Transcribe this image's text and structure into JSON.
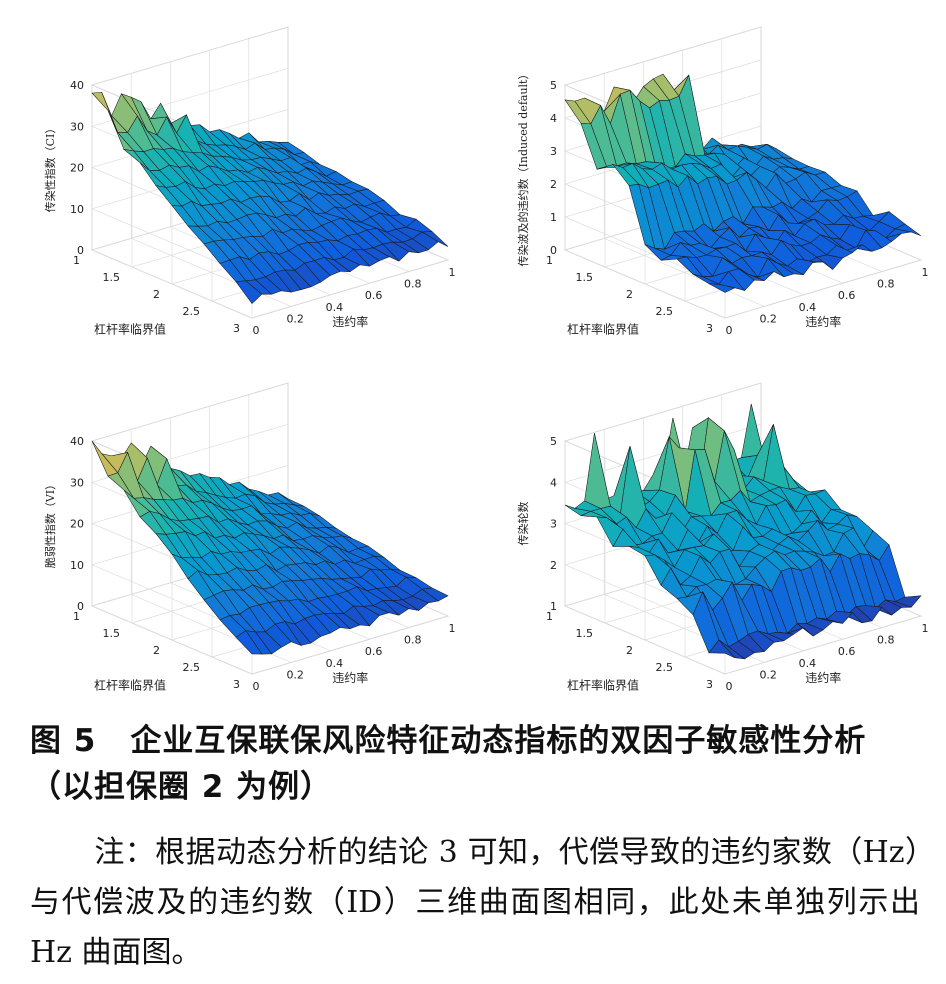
{
  "caption": {
    "number": "图 5",
    "text": "企业互保联保风险特征动态指标的双因子敏感性分析（以担保圈 2 为例）"
  },
  "note": "注：根据动态分析的结论 3 可知，代偿导致的违约家数（Hz）与代偿波及的违约数（ID）三维曲面图相同，此处未单独列示出 Hz 曲面图。",
  "colors": {
    "parula_low": "#352a87",
    "parula_mid": "#1fb0b0",
    "parula_high": "#f9fb0e"
  },
  "chart_data": [
    {
      "type": "surface3d",
      "xlabel": "违约率",
      "ylabel": "杠杆率临界值",
      "zlabel": "传染性指数（CI）",
      "x_ticks": [
        "0",
        "0.2",
        "0.4",
        "0.6",
        "0.8",
        "1"
      ],
      "y_ticks": [
        "1",
        "1.5",
        "2",
        "2.5",
        "3"
      ],
      "z_ticks": [
        "0",
        "10",
        "20",
        "30",
        "40"
      ],
      "zlim": [
        0,
        40
      ],
      "shape": "ramp"
    },
    {
      "type": "surface3d",
      "xlabel": "违约率",
      "ylabel": "杠杆率临界值",
      "zlabel": "传染波及的违约数（Induced default）",
      "x_ticks": [
        "0",
        "0.2",
        "0.4",
        "0.6",
        "0.8",
        "1"
      ],
      "y_ticks": [
        "1",
        "1.5",
        "2",
        "2.5",
        "3"
      ],
      "z_ticks": [
        "0",
        "1",
        "2",
        "3",
        "4",
        "5"
      ],
      "zlim": [
        0,
        5
      ],
      "shape": "cliff"
    },
    {
      "type": "surface3d",
      "xlabel": "违约率",
      "ylabel": "杠杆率临界值",
      "zlabel": "脆弱性指数（VI）",
      "x_ticks": [
        "0",
        "0.2",
        "0.4",
        "0.6",
        "0.8",
        "1"
      ],
      "y_ticks": [
        "1",
        "1.5",
        "2",
        "2.5",
        "3"
      ],
      "z_ticks": [
        "0",
        "10",
        "20",
        "30",
        "40"
      ],
      "zlim": [
        0,
        40
      ],
      "shape": "ramp2"
    },
    {
      "type": "surface3d",
      "xlabel": "违约率",
      "ylabel": "杠杆率临界值",
      "zlabel": "传染轮数",
      "x_ticks": [
        "0",
        "0.2",
        "0.4",
        "0.6",
        "0.8",
        "1"
      ],
      "y_ticks": [
        "1",
        "1.5",
        "2",
        "2.5",
        "3"
      ],
      "z_ticks": [
        "1",
        "2",
        "3",
        "4",
        "5"
      ],
      "zlim": [
        1,
        5
      ],
      "shape": "rounds"
    }
  ]
}
